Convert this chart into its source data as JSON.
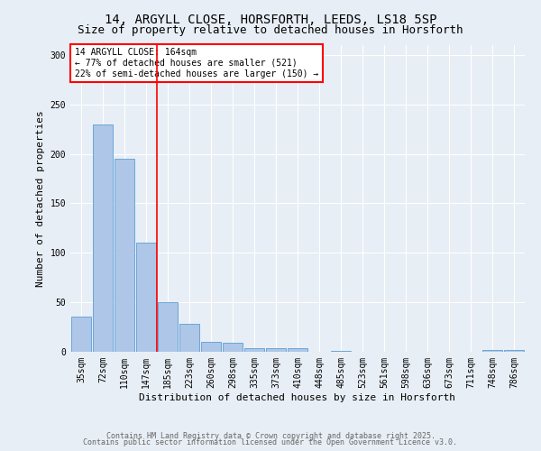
{
  "title1": "14, ARGYLL CLOSE, HORSFORTH, LEEDS, LS18 5SP",
  "title2": "Size of property relative to detached houses in Horsforth",
  "xlabel": "Distribution of detached houses by size in Horsforth",
  "ylabel": "Number of detached properties",
  "categories": [
    "35sqm",
    "72sqm",
    "110sqm",
    "147sqm",
    "185sqm",
    "223sqm",
    "260sqm",
    "298sqm",
    "335sqm",
    "373sqm",
    "410sqm",
    "448sqm",
    "485sqm",
    "523sqm",
    "561sqm",
    "598sqm",
    "636sqm",
    "673sqm",
    "711sqm",
    "748sqm",
    "786sqm"
  ],
  "values": [
    36,
    230,
    195,
    110,
    50,
    28,
    10,
    9,
    4,
    4,
    4,
    0,
    1,
    0,
    0,
    0,
    0,
    0,
    0,
    2,
    2
  ],
  "bar_color": "#aec6e8",
  "bar_edge_color": "#5a9fd4",
  "redline_x": 3.5,
  "annotation_text": "14 ARGYLL CLOSE: 164sqm\n← 77% of detached houses are smaller (521)\n22% of semi-detached houses are larger (150) →",
  "annotation_box_color": "white",
  "annotation_box_edge": "red",
  "redline_color": "red",
  "ylim": [
    0,
    310
  ],
  "yticks": [
    0,
    50,
    100,
    150,
    200,
    250,
    300
  ],
  "footer1": "Contains HM Land Registry data © Crown copyright and database right 2025.",
  "footer2": "Contains public sector information licensed under the Open Government Licence v3.0.",
  "bg_color": "#e8eef5",
  "plot_bg_color": "#e8eef5",
  "title_fontsize": 10,
  "subtitle_fontsize": 9,
  "axis_label_fontsize": 8,
  "tick_fontsize": 7,
  "annot_fontsize": 7,
  "footer_fontsize": 6
}
